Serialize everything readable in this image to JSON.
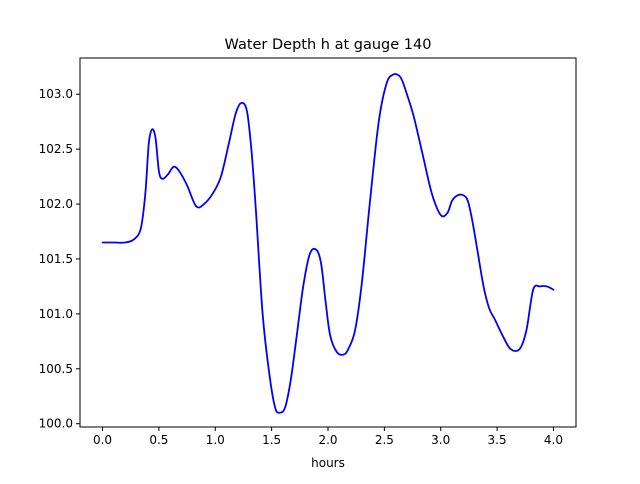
{
  "chart_data": {
    "type": "line",
    "title": "Water Depth h at gauge 140",
    "xlabel": "hours",
    "ylabel": "",
    "xlim": [
      -0.2,
      4.2
    ],
    "ylim": [
      99.97,
      103.33
    ],
    "xticks": [
      0.0,
      0.5,
      1.0,
      1.5,
      2.0,
      2.5,
      3.0,
      3.5,
      4.0
    ],
    "xtick_labels": [
      "0.0",
      "0.5",
      "1.0",
      "1.5",
      "2.0",
      "2.5",
      "3.0",
      "3.5",
      "4.0"
    ],
    "yticks": [
      100.0,
      100.5,
      101.0,
      101.5,
      102.0,
      102.5,
      103.0
    ],
    "ytick_labels": [
      "100.0",
      "100.5",
      "101.0",
      "101.5",
      "102.0",
      "102.5",
      "103.0"
    ],
    "grid": false,
    "legend": "none",
    "line_color": "#0000ff",
    "series": [
      {
        "x": [
          0.0,
          0.1,
          0.2,
          0.28,
          0.34,
          0.38,
          0.41,
          0.44,
          0.47,
          0.5,
          0.53,
          0.58,
          0.63,
          0.68,
          0.75,
          0.83,
          0.9,
          0.98,
          1.05,
          1.12,
          1.18,
          1.23,
          1.28,
          1.32,
          1.36,
          1.42,
          1.48,
          1.53,
          1.57,
          1.62,
          1.67,
          1.72,
          1.78,
          1.84,
          1.9,
          1.94,
          1.98,
          2.02,
          2.08,
          2.14,
          2.18,
          2.24,
          2.3,
          2.37,
          2.45,
          2.52,
          2.58,
          2.63,
          2.66,
          2.7,
          2.76,
          2.84,
          2.92,
          3.0,
          3.06,
          3.1,
          3.15,
          3.2,
          3.24,
          3.28,
          3.33,
          3.38,
          3.43,
          3.48,
          3.55,
          3.62,
          3.7,
          3.76,
          3.82,
          3.88,
          3.94,
          4.0
        ],
        "y": [
          101.65,
          101.65,
          101.65,
          101.68,
          101.78,
          102.1,
          102.55,
          102.68,
          102.6,
          102.3,
          102.23,
          102.27,
          102.34,
          102.3,
          102.17,
          101.98,
          102.0,
          102.1,
          102.25,
          102.55,
          102.82,
          102.92,
          102.85,
          102.5,
          101.95,
          101.0,
          100.45,
          100.15,
          100.1,
          100.15,
          100.4,
          100.78,
          101.25,
          101.55,
          101.58,
          101.45,
          101.1,
          100.8,
          100.65,
          100.63,
          100.68,
          100.85,
          101.28,
          102.0,
          102.75,
          103.1,
          103.18,
          103.17,
          103.12,
          103.0,
          102.8,
          102.45,
          102.1,
          101.9,
          101.92,
          102.03,
          102.08,
          102.08,
          102.03,
          101.85,
          101.55,
          101.25,
          101.05,
          100.95,
          100.8,
          100.68,
          100.68,
          100.85,
          101.22,
          101.25,
          101.25,
          101.22
        ]
      }
    ]
  }
}
